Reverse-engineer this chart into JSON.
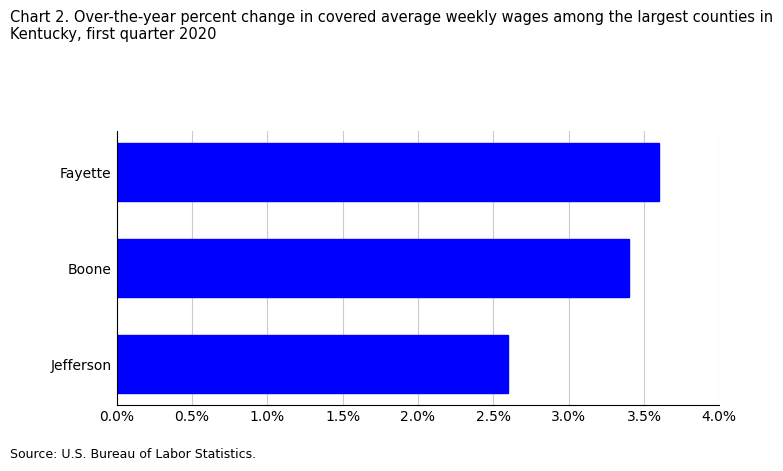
{
  "title_line1": "Chart 2. Over-the-year percent change in covered average weekly wages among the largest counties in",
  "title_line2": "Kentucky, first quarter 2020",
  "categories": [
    "Jefferson",
    "Boone",
    "Fayette"
  ],
  "values": [
    0.026,
    0.034,
    0.036
  ],
  "bar_color": "#0000FF",
  "xlim": [
    0.0,
    0.04
  ],
  "xtick_values": [
    0.0,
    0.005,
    0.01,
    0.015,
    0.02,
    0.025,
    0.03,
    0.035,
    0.04
  ],
  "xtick_labels": [
    "0.0%",
    "0.5%",
    "1.0%",
    "1.5%",
    "2.0%",
    "2.5%",
    "3.0%",
    "3.5%",
    "4.0%"
  ],
  "source": "Source: U.S. Bureau of Labor Statistics.",
  "background_color": "#ffffff",
  "grid_color": "#cccccc",
  "title_fontsize": 10.5,
  "label_fontsize": 10,
  "tick_fontsize": 10,
  "source_fontsize": 9,
  "bar_height": 0.6
}
